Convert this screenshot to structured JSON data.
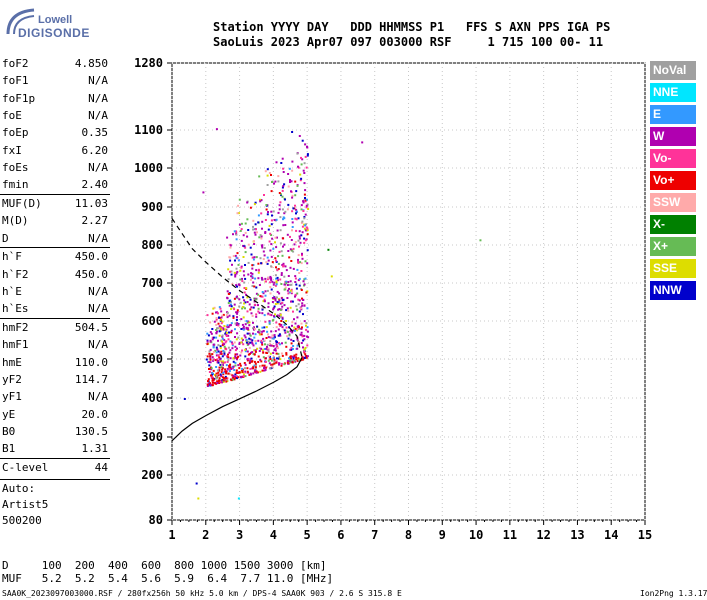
{
  "logo": {
    "line1": "Lowell",
    "line2": "DIGISONDE"
  },
  "header": {
    "line1": "Station YYYY DAY   DDD HHMMSS P1   FFS S AXN PPS IGA PS",
    "line2": "SaoLuis 2023 Apr07 097 003000 RSF     1 715 100 00- 11"
  },
  "params": [
    {
      "key": "foF2",
      "value": "4.850"
    },
    {
      "key": "foF1",
      "value": "N/A"
    },
    {
      "key": "foF1p",
      "value": "N/A"
    },
    {
      "key": "foE",
      "value": "N/A"
    },
    {
      "key": "foEp",
      "value": "0.35"
    },
    {
      "key": "fxI",
      "value": "6.20"
    },
    {
      "key": "foEs",
      "value": "N/A"
    },
    {
      "key": "fmin",
      "value": "2.40"
    },
    {
      "key": "MUF(D)",
      "value": "11.03"
    },
    {
      "key": "M(D)",
      "value": "2.27"
    },
    {
      "key": "D",
      "value": "N/A"
    },
    {
      "key": "h`F",
      "value": "450.0"
    },
    {
      "key": "h`F2",
      "value": "450.0"
    },
    {
      "key": "h`E",
      "value": "N/A"
    },
    {
      "key": "h`Es",
      "value": "N/A"
    },
    {
      "key": "hmF2",
      "value": "504.5"
    },
    {
      "key": "hmF1",
      "value": "N/A"
    },
    {
      "key": "hmE",
      "value": "110.0"
    },
    {
      "key": "yF2",
      "value": "114.7"
    },
    {
      "key": "yF1",
      "value": "N/A"
    },
    {
      "key": "yE",
      "value": "20.0"
    },
    {
      "key": "B0",
      "value": "130.5"
    },
    {
      "key": "B1",
      "value": "1.31"
    },
    {
      "key": "C-level",
      "value": "44"
    }
  ],
  "auto": {
    "line1": "Auto:",
    "line2": "Artist5",
    "line3": "500200"
  },
  "legend": [
    {
      "label": "NoVal",
      "color": "#a0a0a0"
    },
    {
      "label": "NNE",
      "color": "#00e6ff"
    },
    {
      "label": "E",
      "color": "#3399ff"
    },
    {
      "label": "W",
      "color": "#b000b0"
    },
    {
      "label": "Vo-",
      "color": "#ff3399"
    },
    {
      "label": "Vo+",
      "color": "#ee0000"
    },
    {
      "label": "SSW",
      "color": "#ffaaaa"
    },
    {
      "label": "X-",
      "color": "#008000"
    },
    {
      "label": "X+",
      "color": "#66bb55"
    },
    {
      "label": "SSE",
      "color": "#dddd00"
    },
    {
      "label": "NNW",
      "color": "#0000cc"
    }
  ],
  "footer": {
    "d_row": "D     100  200  400  600  800 1000 1500 3000 [km]",
    "muf_row": "MUF   5.2  5.2  5.4  5.6  5.9  6.4  7.7 11.0 [MHz]",
    "source": "SAA0K_2023097003000.RSF / 280fx256h 50 kHz 5.0 km / DPS-4 SAA0K 903 / 2.6 S 315.8 E",
    "version": "Ion2Png 1.3.17"
  },
  "chart_data": {
    "type": "scatter",
    "title": "",
    "xlabel": "",
    "ylabel": "",
    "xlim": [
      1,
      15
    ],
    "ylim": [
      80,
      1280
    ],
    "xticks": [
      "1",
      "2",
      "3",
      "4",
      "5",
      "6",
      "7",
      "8",
      "9",
      "10",
      "11",
      "12",
      "13",
      "14",
      "15"
    ],
    "yticks": [
      "80",
      "200",
      "300",
      "400",
      "500",
      "600",
      "700",
      "800",
      "900",
      "1000",
      "1100",
      "1280"
    ],
    "y_tick_values": [
      80,
      200,
      300,
      400,
      500,
      600,
      700,
      800,
      900,
      1000,
      1100,
      1280
    ],
    "grid": true,
    "legend_placement": "right",
    "profile_line": {
      "x": [
        1.0,
        1.3,
        1.6,
        2.0,
        2.5,
        3.0,
        3.5,
        4.0,
        4.4,
        4.7,
        4.85
      ],
      "y": [
        290,
        315,
        335,
        355,
        378,
        398,
        418,
        440,
        460,
        480,
        504
      ]
    },
    "extrapolation_line": {
      "x": [
        1.0,
        1.3,
        1.6,
        2.0,
        2.5,
        3.0,
        3.5,
        4.0,
        4.4,
        4.7,
        4.85
      ],
      "y": [
        870,
        830,
        790,
        755,
        715,
        680,
        650,
        620,
        590,
        560,
        504
      ]
    },
    "echo_cluster": {
      "x_range": [
        2.0,
        5.0
      ],
      "y_range": [
        430,
        1100
      ],
      "dominant_series": "W"
    }
  }
}
